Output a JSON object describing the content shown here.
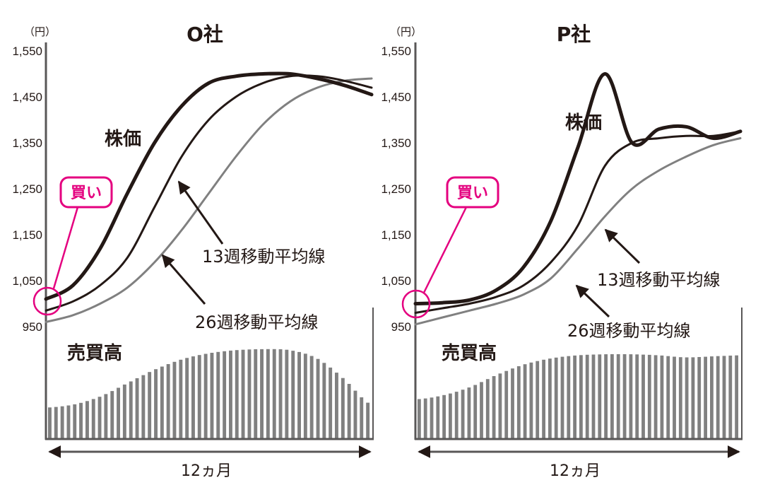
{
  "colors": {
    "price": "#231815",
    "ma13": "#231815",
    "ma26": "#808080",
    "volume": "#808080",
    "buy": "#e4007f",
    "axis": "#595757"
  },
  "shared": {
    "unit": "（円）",
    "y_ticks": [
      "1,550",
      "1,450",
      "1,350",
      "1,250",
      "1,150",
      "1,050",
      "950"
    ],
    "price_label": "株価",
    "ma13_label": "13週移動平均線",
    "ma26_label": "26週移動平均線",
    "volume_label": "売買高",
    "buy_label": "買い",
    "span_label": "12ヵ月"
  },
  "chart_data": [
    {
      "type": "line",
      "title": "O社",
      "ylabel": "（円）",
      "ylim": [
        950,
        1550
      ],
      "x": [
        0,
        1,
        2,
        3,
        4,
        5,
        6,
        7,
        8,
        9,
        10,
        11,
        12
      ],
      "series": [
        {
          "name": "株価",
          "values": [
            1010,
            1040,
            1120,
            1240,
            1350,
            1430,
            1480,
            1495,
            1500,
            1500,
            1490,
            1475,
            1455
          ]
        },
        {
          "name": "13週移動平均線",
          "values": [
            985,
            1005,
            1040,
            1100,
            1210,
            1320,
            1400,
            1450,
            1480,
            1495,
            1495,
            1485,
            1470
          ]
        },
        {
          "name": "26週移動平均線",
          "values": [
            960,
            975,
            1000,
            1035,
            1090,
            1160,
            1240,
            1320,
            1390,
            1440,
            1470,
            1485,
            1490
          ]
        }
      ],
      "volume": {
        "name": "売買高",
        "values": [
          0.3,
          0.33,
          0.41,
          0.54,
          0.67,
          0.77,
          0.83,
          0.86,
          0.87,
          0.86,
          0.78,
          0.58,
          0.33
        ]
      },
      "annotation": {
        "text": "買い",
        "at_x": 0,
        "at_y": 1010
      }
    },
    {
      "type": "line",
      "title": "P社",
      "ylabel": "（円）",
      "ylim": [
        950,
        1550
      ],
      "x": [
        0,
        1,
        2,
        3,
        4,
        5,
        6,
        7,
        8,
        9,
        10,
        11,
        12
      ],
      "series": [
        {
          "name": "株価",
          "values": [
            1000,
            1002,
            1008,
            1030,
            1080,
            1180,
            1340,
            1500,
            1350,
            1380,
            1385,
            1360,
            1375
          ]
        },
        {
          "name": "13週移動平均線",
          "values": [
            980,
            990,
            1000,
            1015,
            1040,
            1090,
            1170,
            1300,
            1350,
            1360,
            1365,
            1365,
            1375
          ]
        },
        {
          "name": "26週移動平均線",
          "values": [
            955,
            970,
            985,
            1000,
            1020,
            1055,
            1120,
            1190,
            1250,
            1290,
            1320,
            1345,
            1360
          ]
        }
      ],
      "volume": {
        "name": "売買高",
        "values": [
          0.38,
          0.42,
          0.5,
          0.62,
          0.72,
          0.78,
          0.81,
          0.82,
          0.82,
          0.81,
          0.79,
          0.8,
          0.81
        ]
      },
      "annotation": {
        "text": "買い",
        "at_x": 0,
        "at_y": 1000
      }
    }
  ]
}
